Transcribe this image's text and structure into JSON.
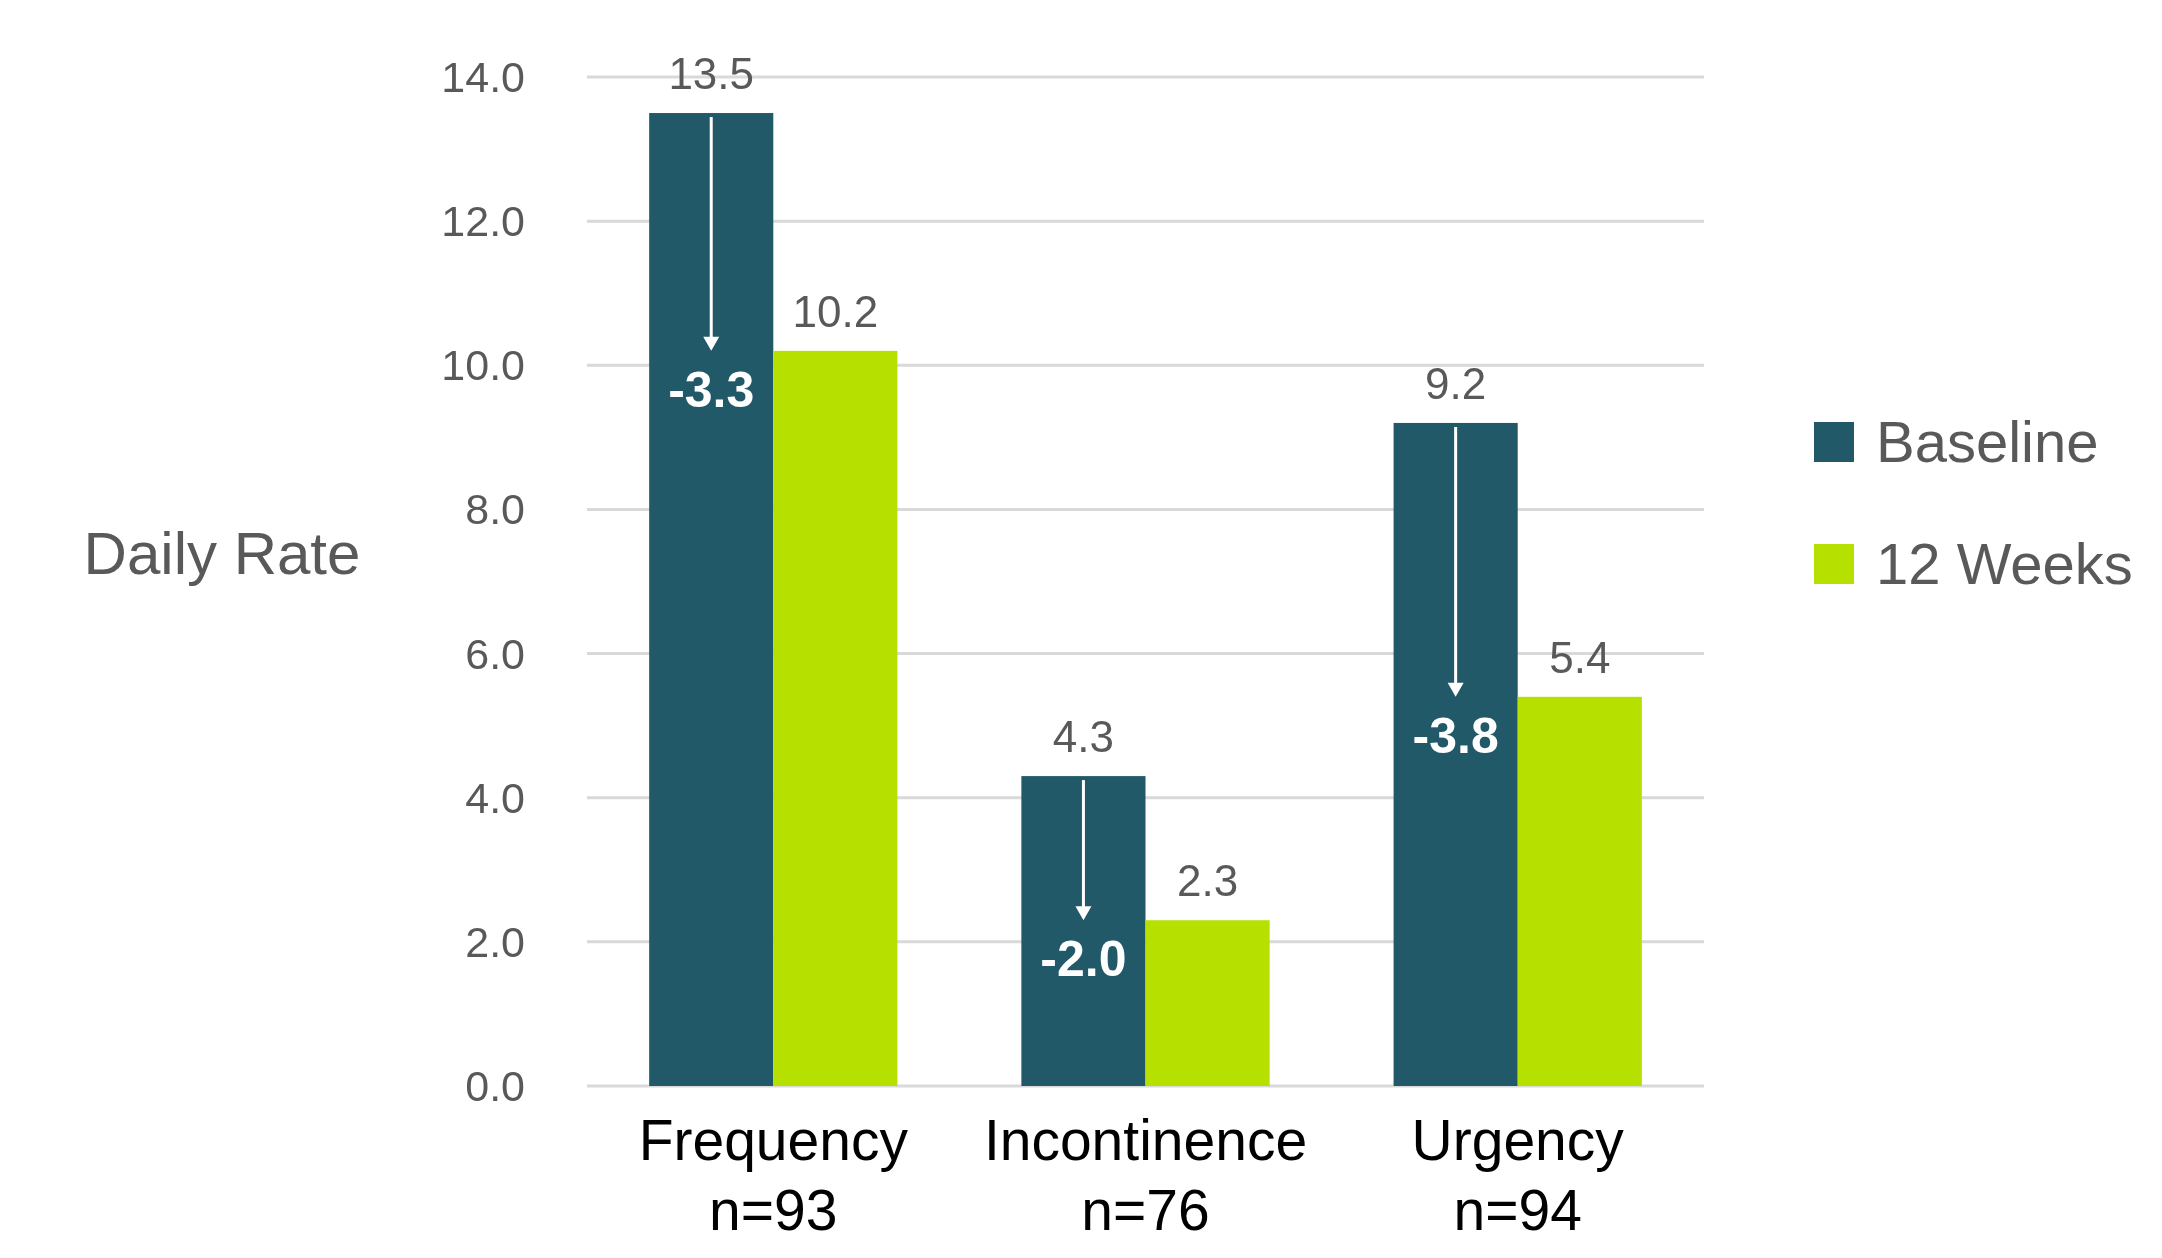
{
  "chart_data": {
    "type": "bar",
    "ylabel": "Daily Rate",
    "categories": [
      "Frequency\nn=93",
      "Incontinence\nn=76",
      "Urgency\nn=94"
    ],
    "series": [
      {
        "name": "Baseline",
        "color": "#215968",
        "values": [
          13.5,
          4.3,
          9.2
        ]
      },
      {
        "name": "12 Weeks",
        "color": "#b5e000",
        "values": [
          10.2,
          2.3,
          5.4
        ]
      }
    ],
    "ylim": [
      0,
      14
    ],
    "yticks": [
      {
        "value": 0,
        "label": "0.0"
      },
      {
        "value": 2,
        "label": "2.0"
      },
      {
        "value": 4,
        "label": "4.0"
      },
      {
        "value": 6,
        "label": "6.0"
      },
      {
        "value": 8,
        "label": "8.0"
      },
      {
        "value": 10,
        "label": "10.0"
      },
      {
        "value": 12,
        "label": "12.0"
      },
      {
        "value": 14,
        "label": "14.0"
      }
    ],
    "grid": "y",
    "legend": "right",
    "data_labels": true,
    "annotations": [
      {
        "text": "-3.3",
        "x": "Frequency\nn=93",
        "y": 10.2
      },
      {
        "text": "-2.0",
        "x": "Incontinence\nn=76",
        "y": 2.3
      },
      {
        "text": "-3.8",
        "x": "Urgency\nn=94",
        "y": 5.4
      }
    ]
  }
}
